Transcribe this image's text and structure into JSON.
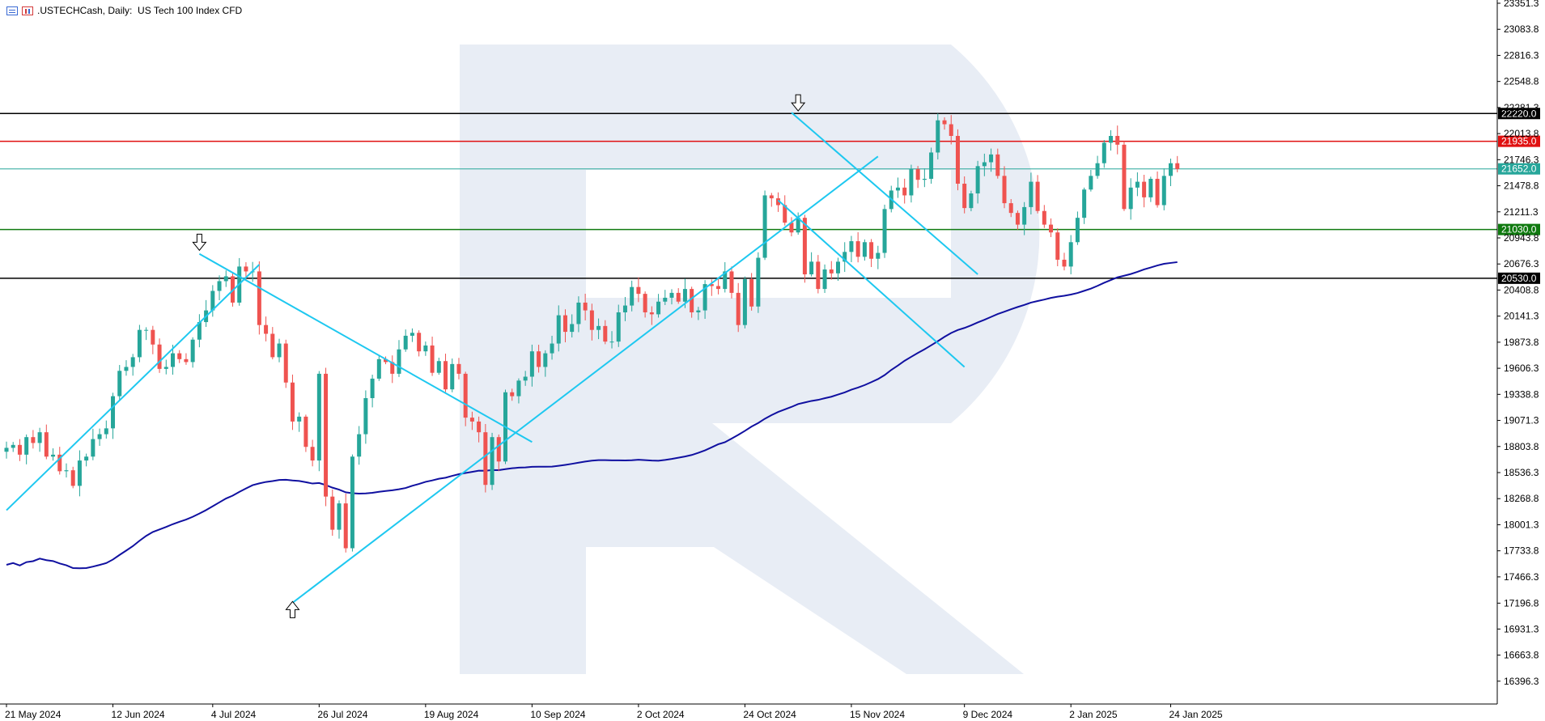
{
  "header": {
    "symbol": ".USTECHCash, Daily:",
    "description": "US Tech 100 Index CFD"
  },
  "colors": {
    "bull": "#26a69a",
    "bear": "#ef5350",
    "trendline": "#1ec8f0",
    "ma": "#1010a0",
    "black_level": "#000000",
    "red_level": "#e01010",
    "green_level": "#107a10",
    "current_line": "#26a69a",
    "watermark": "#e8edf5"
  },
  "chart_data": {
    "type": "candlestick",
    "title": ".USTECHCash, Daily:  US Tech 100 Index CFD",
    "y_range": [
      16128.8,
      23351.3
    ],
    "y_ticks": [
      "23351.3",
      "23083.8",
      "22816.3",
      "22548.8",
      "22281.3",
      "22013.8",
      "21746.3",
      "21478.8",
      "21211.3",
      "20943.8",
      "20676.3",
      "20408.8",
      "20141.3",
      "19873.8",
      "19606.3",
      "19338.8",
      "19071.3",
      "18803.8",
      "18536.3",
      "18268.8",
      "18001.3",
      "17733.8",
      "17466.3",
      "17196.8",
      "16931.3",
      "16663.8",
      "16396.3"
    ],
    "x_tick_labels": [
      {
        "label": "21 May 2024",
        "bar": 0
      },
      {
        "label": "12 Jun 2024",
        "bar": 16
      },
      {
        "label": "4 Jul 2024",
        "bar": 31
      },
      {
        "label": "26 Jul 2024",
        "bar": 47
      },
      {
        "label": "19 Aug 2024",
        "bar": 63
      },
      {
        "label": "10 Sep 2024",
        "bar": 79
      },
      {
        "label": "2 Oct 2024",
        "bar": 95
      },
      {
        "label": "24 Oct 2024",
        "bar": 111
      },
      {
        "label": "15 Nov 2024",
        "bar": 127
      },
      {
        "label": "9 Dec 2024",
        "bar": 144
      },
      {
        "label": "2 Jan 2025",
        "bar": 160
      },
      {
        "label": "24 Jan 2025",
        "bar": 175
      }
    ],
    "levels": [
      {
        "value": 22220.0,
        "label": "22220.0",
        "role": "black"
      },
      {
        "value": 21935.0,
        "label": "21935.0",
        "role": "red"
      },
      {
        "value": 21652.0,
        "label": "21652.0",
        "role": "current"
      },
      {
        "value": 21030.0,
        "label": "21030.0",
        "role": "green"
      },
      {
        "value": 20530.0,
        "label": "20530.0",
        "role": "black"
      }
    ],
    "closes": [
      18790,
      18820,
      18720,
      18900,
      18840,
      18950,
      18700,
      18720,
      18550,
      18560,
      18400,
      18660,
      18700,
      18880,
      18930,
      18990,
      19320,
      19580,
      19620,
      19720,
      20000,
      20000,
      19850,
      19600,
      19620,
      19760,
      19700,
      19670,
      19900,
      20080,
      20200,
      20400,
      20500,
      20550,
      20280,
      20650,
      20600,
      20600,
      20050,
      19960,
      19720,
      19860,
      19460,
      19060,
      19110,
      18800,
      18660,
      19550,
      18290,
      17950,
      18220,
      17760,
      18700,
      18930,
      19300,
      19500,
      19700,
      19670,
      19550,
      19800,
      19940,
      19970,
      19780,
      19840,
      19560,
      19680,
      19390,
      19650,
      19550,
      19100,
      19060,
      18950,
      18410,
      18900,
      18650,
      19360,
      19320,
      19480,
      19520,
      19780,
      19620,
      19760,
      19860,
      20150,
      19980,
      20060,
      20280,
      20200,
      20000,
      20040,
      19880,
      19880,
      20180,
      20250,
      20440,
      20370,
      20180,
      20160,
      20290,
      20330,
      20380,
      20290,
      20420,
      20180,
      20200,
      20470,
      20450,
      20420,
      20600,
      20380,
      20050,
      20520,
      20240,
      20740,
      21380,
      21350,
      21280,
      21100,
      21000,
      21150,
      20570,
      20700,
      20420,
      20620,
      20580,
      20700,
      20800,
      20910,
      20750,
      20900,
      20730,
      20790,
      21240,
      21430,
      21460,
      21380,
      21650,
      21540,
      21550,
      21820,
      22150,
      22110,
      21990,
      21500,
      21250,
      21400,
      21680,
      21720,
      21800,
      21580,
      21300,
      21200,
      21080,
      21260,
      21520,
      21220,
      21080,
      21000,
      20720,
      20650,
      20900,
      21150,
      21440,
      21580,
      21710,
      21920,
      21990,
      21900,
      21240,
      21460,
      21520,
      21360,
      21550,
      21280,
      21580,
      21710,
      21650
    ]
  }
}
